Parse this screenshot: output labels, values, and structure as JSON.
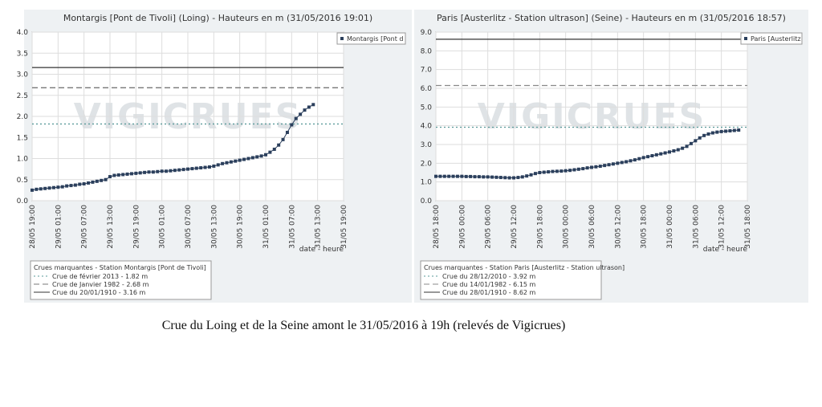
{
  "chart_data": [
    {
      "type": "line",
      "title": "Montargis [Pont de Tivoli] (Loing) - Hauteurs en m (31/05/2016 19:01)",
      "watermark": "VIGICRUES",
      "x_label": "date - heure",
      "categories": [
        "28/05 19:00",
        null,
        null,
        null,
        null,
        null,
        "29/05 01:00",
        null,
        null,
        null,
        null,
        null,
        "29/05 07:00",
        null,
        null,
        null,
        null,
        null,
        "29/05 13:00",
        null,
        null,
        null,
        null,
        null,
        "29/05 19:00",
        null,
        null,
        null,
        null,
        null,
        "30/05 01:00",
        null,
        null,
        null,
        null,
        null,
        "30/05 07:00",
        null,
        null,
        null,
        null,
        null,
        "30/05 13:00",
        null,
        null,
        null,
        null,
        null,
        "30/05 19:00",
        null,
        null,
        null,
        null,
        null,
        "31/05 01:00",
        null,
        null,
        null,
        null,
        null,
        "31/05 07:00",
        null,
        null,
        null,
        null,
        null,
        "31/05 13:00",
        null,
        null,
        null,
        null,
        null,
        "31/05 19:00"
      ],
      "series": [
        {
          "name": "Montargis [Pont d",
          "color": "#2b3f5c",
          "values": [
            0.25,
            0.27,
            0.28,
            0.29,
            0.3,
            0.31,
            0.32,
            0.33,
            0.35,
            0.36,
            0.37,
            0.39,
            0.4,
            0.42,
            0.44,
            0.46,
            0.48,
            0.5,
            0.57,
            0.6,
            0.61,
            0.62,
            0.63,
            0.64,
            0.65,
            0.66,
            0.67,
            0.68,
            0.68,
            0.69,
            0.7,
            0.7,
            0.71,
            0.72,
            0.73,
            0.74,
            0.75,
            0.76,
            0.77,
            0.78,
            0.79,
            0.8,
            0.82,
            0.85,
            0.88,
            0.9,
            0.92,
            0.94,
            0.96,
            0.98,
            1.0,
            1.02,
            1.04,
            1.06,
            1.09,
            1.15,
            1.22,
            1.32,
            1.45,
            1.62,
            1.8,
            1.95,
            2.05,
            2.15,
            2.22,
            2.28,
            null,
            null,
            null,
            null,
            null,
            null,
            null
          ]
        }
      ],
      "ylim": [
        0,
        4
      ],
      "yticks": [
        {
          "value": 0,
          "label": "0.0"
        },
        0.5,
        {
          "value": 1,
          "label": "1.0"
        },
        1.5,
        {
          "value": 2,
          "label": "2.0"
        },
        2.5,
        {
          "value": 3,
          "label": "3.0"
        },
        3.5,
        {
          "value": 4,
          "label": "4.0"
        }
      ],
      "grid": true,
      "reference_title": "Crues marquantes - Station Montargis [Pont de Tivoli]",
      "references": [
        {
          "label": "Crue de février 2013 - 1.82 m",
          "value": 1.82,
          "color": "#5a9a9a",
          "dash": "dotted"
        },
        {
          "label": "Crue de Janvier 1982 - 2.68 m",
          "value": 2.68,
          "color": "#777777",
          "dash": "dashed"
        },
        {
          "label": "Crue du 20/01/1910 - 3.16 m",
          "value": 3.16,
          "color": "#333333",
          "dash": "solid"
        }
      ]
    },
    {
      "type": "line",
      "title": "Paris [Austerlitz - Station ultrason] (Seine) - Hauteurs en m (31/05/2016 18:57)",
      "watermark": "VIGICRUES",
      "x_label": "date - heure",
      "categories": [
        "28/05 18:00",
        null,
        null,
        null,
        null,
        null,
        "29/05 00:00",
        null,
        null,
        null,
        null,
        null,
        "29/05 06:00",
        null,
        null,
        null,
        null,
        null,
        "29/05 12:00",
        null,
        null,
        null,
        null,
        null,
        "29/05 18:00",
        null,
        null,
        null,
        null,
        null,
        "30/05 00:00",
        null,
        null,
        null,
        null,
        null,
        "30/05 06:00",
        null,
        null,
        null,
        null,
        null,
        "30/05 12:00",
        null,
        null,
        null,
        null,
        null,
        "30/05 18:00",
        null,
        null,
        null,
        null,
        null,
        "31/05 00:00",
        null,
        null,
        null,
        null,
        null,
        "31/05 06:00",
        null,
        null,
        null,
        null,
        null,
        "31/05 12:00",
        null,
        null,
        null,
        null,
        null,
        "31/05 18:00"
      ],
      "series": [
        {
          "name": "Paris [Austerlitz",
          "color": "#2b3f5c",
          "values": [
            1.3,
            1.3,
            1.3,
            1.3,
            1.3,
            1.3,
            1.3,
            1.29,
            1.29,
            1.28,
            1.28,
            1.27,
            1.27,
            1.26,
            1.25,
            1.24,
            1.23,
            1.22,
            1.22,
            1.24,
            1.27,
            1.32,
            1.38,
            1.45,
            1.5,
            1.52,
            1.54,
            1.56,
            1.57,
            1.58,
            1.6,
            1.62,
            1.65,
            1.68,
            1.71,
            1.75,
            1.78,
            1.81,
            1.84,
            1.88,
            1.92,
            1.96,
            2.0,
            2.04,
            2.08,
            2.13,
            2.18,
            2.24,
            2.3,
            2.35,
            2.4,
            2.45,
            2.5,
            2.55,
            2.6,
            2.66,
            2.72,
            2.8,
            2.9,
            3.05,
            3.2,
            3.35,
            3.48,
            3.56,
            3.62,
            3.66,
            3.69,
            3.71,
            3.73,
            3.75,
            3.77,
            null,
            null
          ]
        }
      ],
      "ylim": [
        0,
        9
      ],
      "yticks": [
        {
          "value": 0,
          "label": "0.0"
        },
        {
          "value": 1,
          "label": "1.0"
        },
        {
          "value": 2,
          "label": "2.0"
        },
        {
          "value": 3,
          "label": "3.0"
        },
        {
          "value": 4,
          "label": "4.0"
        },
        {
          "value": 5,
          "label": "5.0"
        },
        {
          "value": 6,
          "label": "6.0"
        },
        {
          "value": 7,
          "label": "7.0"
        },
        {
          "value": 8,
          "label": "8.0"
        },
        {
          "value": 9,
          "label": "9.0"
        }
      ],
      "grid": true,
      "reference_title": "Crues marquantes - Station Paris [Austerlitz - Station ultrason]",
      "references": [
        {
          "label": "Crue du 28/12/2010 - 3.92 m",
          "value": 3.92,
          "color": "#5a9a9a",
          "dash": "dotted"
        },
        {
          "label": "Crue du 14/01/1982 - 6.15 m",
          "value": 6.15,
          "color": "#888888",
          "dash": "dashed"
        },
        {
          "label": "Crue du 28/01/1910 - 8.62 m",
          "value": 8.62,
          "color": "#333333",
          "dash": "solid"
        }
      ]
    }
  ],
  "caption": "Crue du Loing et de la Seine amont le 31/05/2016 à 19h  (relevés de Vigicrues)"
}
